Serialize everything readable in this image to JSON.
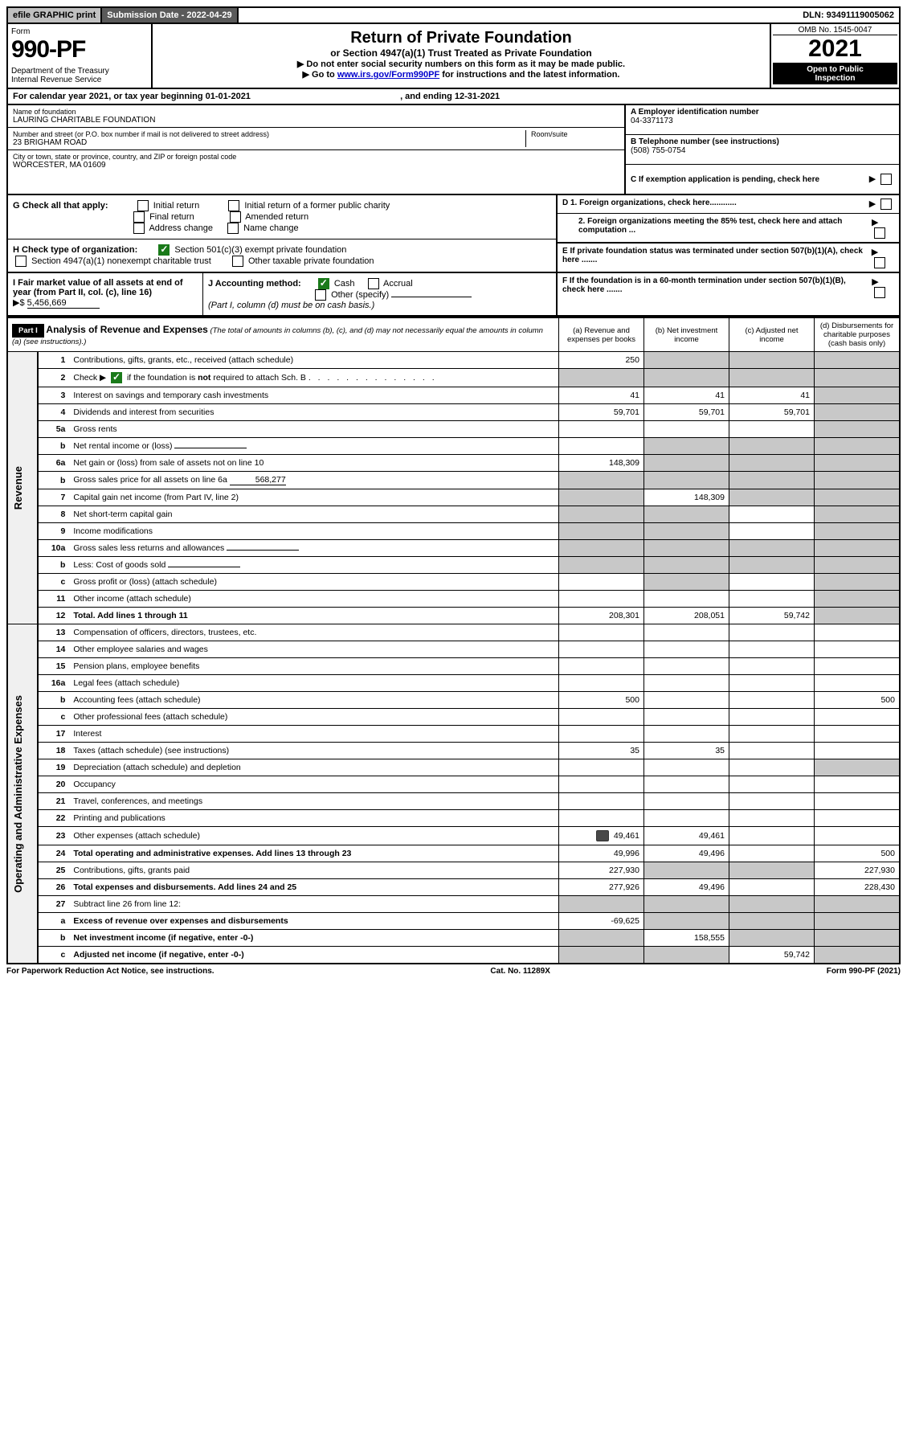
{
  "top_bar": {
    "efile": "efile GRAPHIC print",
    "submission_label": "Submission Date - ",
    "submission_date": "2022-04-29",
    "dln_label": "DLN: ",
    "dln": "93491119005062"
  },
  "header": {
    "form_label": "Form",
    "form_number": "990-PF",
    "dept1": "Department of the Treasury",
    "dept2": "Internal Revenue Service",
    "title": "Return of Private Foundation",
    "sub1": "or Section 4947(a)(1) Trust Treated as Private Foundation",
    "sub2a": "▶ Do not enter social security numbers on this form as it may be made public.",
    "sub2b_pre": "▶ Go to ",
    "sub2b_link": "www.irs.gov/Form990PF",
    "sub2b_post": " for instructions and the latest information.",
    "omb": "OMB No. 1545-0047",
    "year": "2021",
    "inspect1": "Open to Public",
    "inspect2": "Inspection"
  },
  "calendar_year": {
    "prefix": "For calendar year 2021, or tax year beginning ",
    "begin": "01-01-2021",
    "mid": " , and ending ",
    "end": "12-31-2021"
  },
  "identity": {
    "name_label": "Name of foundation",
    "name": "LAURING CHARITABLE FOUNDATION",
    "addr_label": "Number and street (or P.O. box number if mail is not delivered to street address)",
    "room_label": "Room/suite",
    "addr": "23 BRIGHAM ROAD",
    "city_label": "City or town, state or province, country, and ZIP or foreign postal code",
    "city": "WORCESTER, MA  01609",
    "ein_label": "A Employer identification number",
    "ein": "04-3371173",
    "phone_label": "B Telephone number (see instructions)",
    "phone": "(508) 755-0754",
    "exemption_label": "C If exemption application is pending, check here"
  },
  "section_g": {
    "label": "G Check all that apply:",
    "o1": "Initial return",
    "o2": "Initial return of a former public charity",
    "o3": "Final return",
    "o4": "Amended return",
    "o5": "Address change",
    "o6": "Name change"
  },
  "section_h": {
    "label": "H Check type of organization:",
    "o1": "Section 501(c)(3) exempt private foundation",
    "o2": "Section 4947(a)(1) nonexempt charitable trust",
    "o3": "Other taxable private foundation"
  },
  "section_i": {
    "label": "I Fair market value of all assets at end of year (from Part II, col. (c), line 16)",
    "arrow": "▶$",
    "value": "5,456,669"
  },
  "section_j": {
    "label": "J Accounting method:",
    "o1": "Cash",
    "o2": "Accrual",
    "o3": "Other (specify)",
    "note": "(Part I, column (d) must be on cash basis.)"
  },
  "right_blocks": {
    "d1": "D 1. Foreign organizations, check here............",
    "d2": "2. Foreign organizations meeting the 85% test, check here and attach computation ...",
    "e": "E  If private foundation status was terminated under section 507(b)(1)(A), check here .......",
    "f": "F  If the foundation is in a 60-month termination under section 507(b)(1)(B), check here .......",
    "arrow": "▶"
  },
  "part1": {
    "label": "Part I",
    "title": "Analysis of Revenue and Expenses",
    "title_note": " (The total of amounts in columns (b), (c), and (d) may not necessarily equal the amounts in column (a) (see instructions).)",
    "col_a": "(a)   Revenue and expenses per books",
    "col_b": "(b)   Net investment income",
    "col_c": "(c)   Adjusted net income",
    "col_d": "(d)   Disbursements for charitable purposes (cash basis only)",
    "revenue_label": "Revenue",
    "expenses_label": "Operating and Administrative Expenses"
  },
  "rows": [
    {
      "n": "1",
      "desc": "Contributions, gifts, grants, etc., received (attach schedule)",
      "a": "250",
      "b": "",
      "c": "",
      "d": "",
      "shade_b": true,
      "shade_c": true,
      "shade_d": true
    },
    {
      "n": "2",
      "desc": "Check ▶ ☑ if the foundation is not required to attach Sch. B",
      "a": "",
      "b": "",
      "c": "",
      "d": "",
      "shade_a": true,
      "shade_b": true,
      "shade_c": true,
      "shade_d": true,
      "is_check_row": true
    },
    {
      "n": "3",
      "desc": "Interest on savings and temporary cash investments",
      "a": "41",
      "b": "41",
      "c": "41",
      "d": "",
      "shade_d": true
    },
    {
      "n": "4",
      "desc": "Dividends and interest from securities",
      "a": "59,701",
      "b": "59,701",
      "c": "59,701",
      "d": "",
      "shade_d": true
    },
    {
      "n": "5a",
      "desc": "Gross rents",
      "a": "",
      "b": "",
      "c": "",
      "d": "",
      "shade_d": true
    },
    {
      "n": "b",
      "desc": "Net rental income or (loss)",
      "a": "",
      "b": "",
      "c": "",
      "d": "",
      "shade_a": false,
      "shade_b": true,
      "shade_c": true,
      "shade_d": true,
      "has_inline_box": true
    },
    {
      "n": "6a",
      "desc": "Net gain or (loss) from sale of assets not on line 10",
      "a": "148,309",
      "b": "",
      "c": "",
      "d": "",
      "shade_b": true,
      "shade_c": true,
      "shade_d": true
    },
    {
      "n": "b",
      "desc": "Gross sales price for all assets on line 6a",
      "a": "",
      "b": "",
      "c": "",
      "d": "",
      "inline_val": "568,277",
      "shade_a": true,
      "shade_b": true,
      "shade_c": true,
      "shade_d": true
    },
    {
      "n": "7",
      "desc": "Capital gain net income (from Part IV, line 2)",
      "a": "",
      "b": "148,309",
      "c": "",
      "d": "",
      "shade_a": true,
      "shade_c": true,
      "shade_d": true
    },
    {
      "n": "8",
      "desc": "Net short-term capital gain",
      "a": "",
      "b": "",
      "c": "",
      "d": "",
      "shade_a": true,
      "shade_b": true,
      "shade_d": true
    },
    {
      "n": "9",
      "desc": "Income modifications",
      "a": "",
      "b": "",
      "c": "",
      "d": "",
      "shade_a": true,
      "shade_b": true,
      "shade_d": true
    },
    {
      "n": "10a",
      "desc": "Gross sales less returns and allowances",
      "a": "",
      "b": "",
      "c": "",
      "d": "",
      "shade_a": true,
      "shade_b": true,
      "shade_c": true,
      "shade_d": true,
      "has_inline_box": true
    },
    {
      "n": "b",
      "desc": "Less: Cost of goods sold",
      "a": "",
      "b": "",
      "c": "",
      "d": "",
      "shade_a": true,
      "shade_b": true,
      "shade_c": true,
      "shade_d": true,
      "has_inline_box": true
    },
    {
      "n": "c",
      "desc": "Gross profit or (loss) (attach schedule)",
      "a": "",
      "b": "",
      "c": "",
      "d": "",
      "shade_b": true,
      "shade_d": true
    },
    {
      "n": "11",
      "desc": "Other income (attach schedule)",
      "a": "",
      "b": "",
      "c": "",
      "d": "",
      "shade_d": true
    },
    {
      "n": "12",
      "desc": "Total. Add lines 1 through 11",
      "a": "208,301",
      "b": "208,051",
      "c": "59,742",
      "d": "",
      "bold": true,
      "shade_d": true
    },
    {
      "n": "13",
      "desc": "Compensation of officers, directors, trustees, etc.",
      "a": "",
      "b": "",
      "c": "",
      "d": ""
    },
    {
      "n": "14",
      "desc": "Other employee salaries and wages",
      "a": "",
      "b": "",
      "c": "",
      "d": ""
    },
    {
      "n": "15",
      "desc": "Pension plans, employee benefits",
      "a": "",
      "b": "",
      "c": "",
      "d": ""
    },
    {
      "n": "16a",
      "desc": "Legal fees (attach schedule)",
      "a": "",
      "b": "",
      "c": "",
      "d": ""
    },
    {
      "n": "b",
      "desc": "Accounting fees (attach schedule)",
      "a": "500",
      "b": "",
      "c": "",
      "d": "500"
    },
    {
      "n": "c",
      "desc": "Other professional fees (attach schedule)",
      "a": "",
      "b": "",
      "c": "",
      "d": ""
    },
    {
      "n": "17",
      "desc": "Interest",
      "a": "",
      "b": "",
      "c": "",
      "d": ""
    },
    {
      "n": "18",
      "desc": "Taxes (attach schedule) (see instructions)",
      "a": "35",
      "b": "35",
      "c": "",
      "d": ""
    },
    {
      "n": "19",
      "desc": "Depreciation (attach schedule) and depletion",
      "a": "",
      "b": "",
      "c": "",
      "d": "",
      "shade_d": true
    },
    {
      "n": "20",
      "desc": "Occupancy",
      "a": "",
      "b": "",
      "c": "",
      "d": ""
    },
    {
      "n": "21",
      "desc": "Travel, conferences, and meetings",
      "a": "",
      "b": "",
      "c": "",
      "d": ""
    },
    {
      "n": "22",
      "desc": "Printing and publications",
      "a": "",
      "b": "",
      "c": "",
      "d": ""
    },
    {
      "n": "23",
      "desc": "Other expenses (attach schedule)",
      "a": "49,461",
      "b": "49,461",
      "c": "",
      "d": "",
      "has_icon": true
    },
    {
      "n": "24",
      "desc": "Total operating and administrative expenses. Add lines 13 through 23",
      "a": "49,996",
      "b": "49,496",
      "c": "",
      "d": "500",
      "bold": true
    },
    {
      "n": "25",
      "desc": "Contributions, gifts, grants paid",
      "a": "227,930",
      "b": "",
      "c": "",
      "d": "227,930",
      "shade_b": true,
      "shade_c": true
    },
    {
      "n": "26",
      "desc": "Total expenses and disbursements. Add lines 24 and 25",
      "a": "277,926",
      "b": "49,496",
      "c": "",
      "d": "228,430",
      "bold": true
    },
    {
      "n": "27",
      "desc": "Subtract line 26 from line 12:",
      "a": "",
      "b": "",
      "c": "",
      "d": "",
      "shade_a": true,
      "shade_b": true,
      "shade_c": true,
      "shade_d": true
    },
    {
      "n": "a",
      "desc": "Excess of revenue over expenses and disbursements",
      "a": "-69,625",
      "b": "",
      "c": "",
      "d": "",
      "bold": true,
      "shade_b": true,
      "shade_c": true,
      "shade_d": true
    },
    {
      "n": "b",
      "desc": "Net investment income (if negative, enter -0-)",
      "a": "",
      "b": "158,555",
      "c": "",
      "d": "",
      "bold": true,
      "shade_a": true,
      "shade_c": true,
      "shade_d": true
    },
    {
      "n": "c",
      "desc": "Adjusted net income (if negative, enter -0-)",
      "a": "",
      "b": "",
      "c": "59,742",
      "d": "",
      "bold": true,
      "shade_a": true,
      "shade_b": true,
      "shade_d": true
    }
  ],
  "footer": {
    "left": "For Paperwork Reduction Act Notice, see instructions.",
    "center": "Cat. No. 11289X",
    "right": "Form 990-PF (2021)"
  }
}
